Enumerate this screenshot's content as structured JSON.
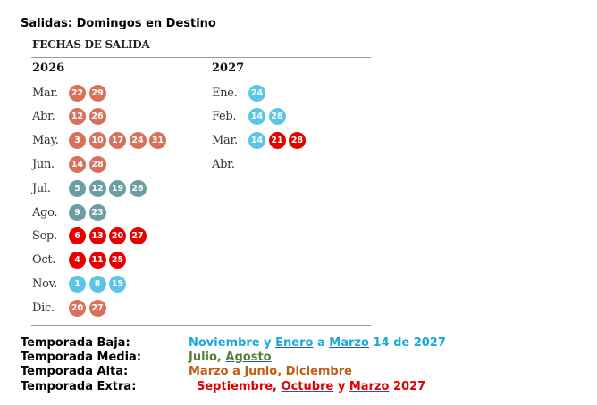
{
  "title": "Salidas: Domingos en Destino",
  "subtitle": "FECHAS DE SALIDA",
  "colors": {
    "alta": "#d9705a",
    "media": "#6a9ea3",
    "extra": "#e60000",
    "baja": "#5bc5e8"
  },
  "columns": [
    {
      "year": "2026",
      "months": [
        {
          "label": "Mar.",
          "dates": [
            {
              "d": "22",
              "s": "alta"
            },
            {
              "d": "29",
              "s": "alta"
            }
          ]
        },
        {
          "label": "Abr.",
          "dates": [
            {
              "d": "12",
              "s": "alta"
            },
            {
              "d": "26",
              "s": "alta"
            }
          ]
        },
        {
          "label": "May.",
          "dates": [
            {
              "d": "3",
              "s": "alta"
            },
            {
              "d": "10",
              "s": "alta"
            },
            {
              "d": "17",
              "s": "alta"
            },
            {
              "d": "24",
              "s": "alta"
            },
            {
              "d": "31",
              "s": "alta"
            }
          ]
        },
        {
          "label": "Jun.",
          "dates": [
            {
              "d": "14",
              "s": "alta"
            },
            {
              "d": "28",
              "s": "alta"
            }
          ]
        },
        {
          "label": "Jul.",
          "dates": [
            {
              "d": "5",
              "s": "media"
            },
            {
              "d": "12",
              "s": "media"
            },
            {
              "d": "19",
              "s": "media"
            },
            {
              "d": "26",
              "s": "media"
            }
          ]
        },
        {
          "label": "Ago.",
          "dates": [
            {
              "d": "9",
              "s": "media"
            },
            {
              "d": "23",
              "s": "media"
            }
          ]
        },
        {
          "label": "Sep.",
          "dates": [
            {
              "d": "6",
              "s": "extra"
            },
            {
              "d": "13",
              "s": "extra"
            },
            {
              "d": "20",
              "s": "extra"
            },
            {
              "d": "27",
              "s": "extra"
            }
          ]
        },
        {
          "label": "Oct.",
          "dates": [
            {
              "d": "4",
              "s": "extra"
            },
            {
              "d": "11",
              "s": "extra"
            },
            {
              "d": "25",
              "s": "extra"
            }
          ]
        },
        {
          "label": "Nov.",
          "dates": [
            {
              "d": "1",
              "s": "baja"
            },
            {
              "d": "8",
              "s": "baja"
            },
            {
              "d": "15",
              "s": "baja"
            }
          ]
        },
        {
          "label": "Dic.",
          "dates": [
            {
              "d": "20",
              "s": "alta"
            },
            {
              "d": "27",
              "s": "alta"
            }
          ]
        }
      ]
    },
    {
      "year": "2027",
      "months": [
        {
          "label": "Ene.",
          "dates": [
            {
              "d": "24",
              "s": "baja"
            }
          ]
        },
        {
          "label": "Feb.",
          "dates": [
            {
              "d": "14",
              "s": "baja"
            },
            {
              "d": "28",
              "s": "baja"
            }
          ]
        },
        {
          "label": "Mar.",
          "dates": [
            {
              "d": "14",
              "s": "baja"
            },
            {
              "d": "21",
              "s": "extra"
            },
            {
              "d": "28",
              "s": "extra"
            }
          ]
        },
        {
          "label": "Abr.",
          "dates": []
        }
      ]
    }
  ],
  "legend": [
    {
      "label": "Temporada Baja:",
      "color": "#1aa7dc",
      "parts": [
        {
          "t": "Noviembre y "
        },
        {
          "t": "Enero",
          "u": true
        },
        {
          "t": " a "
        },
        {
          "t": "Marzo",
          "u": true
        },
        {
          "t": " 14 de 2027"
        }
      ]
    },
    {
      "label": "Temporada Media:",
      "color": "#538135",
      "parts": [
        {
          "t": "Julio, "
        },
        {
          "t": "Agosto",
          "u": true
        }
      ]
    },
    {
      "label": "Temporada Alta:",
      "color": "#c55a11",
      "parts": [
        {
          "t": "Marzo a "
        },
        {
          "t": "Junio",
          "u": true
        },
        {
          "t": ", "
        },
        {
          "t": "Diciembre",
          "u": true
        }
      ]
    },
    {
      "label": "Temporada Extra:",
      "color": "#e00000",
      "parts": [
        {
          "t": "Septiembre, "
        },
        {
          "t": "Octubre",
          "u": true
        },
        {
          "t": " y "
        },
        {
          "t": "Marzo",
          "u": true
        },
        {
          "t": " 2027"
        }
      ]
    }
  ]
}
